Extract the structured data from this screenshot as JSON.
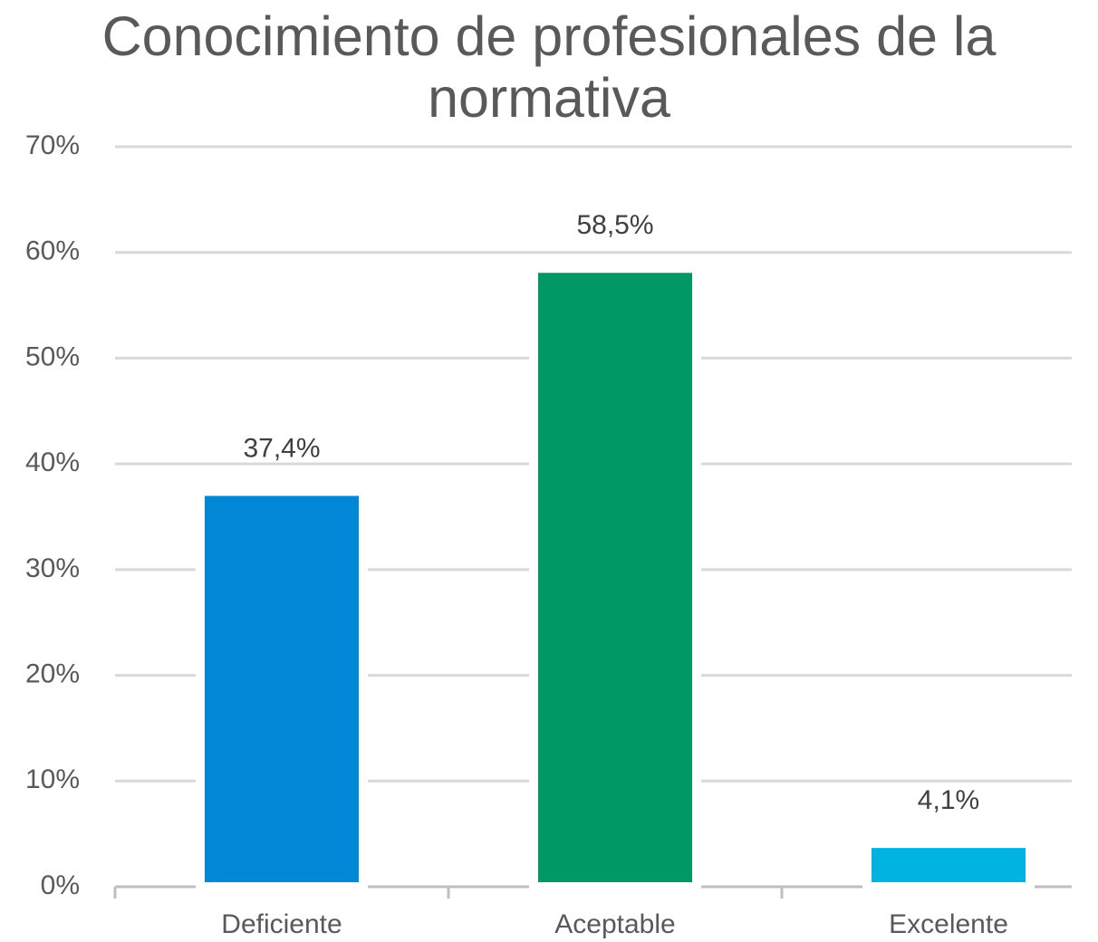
{
  "chart_data": {
    "type": "bar",
    "title": "Conocimiento de profesionales de la normativa",
    "categories": [
      "Deficiente",
      "Aceptable",
      "Excelente"
    ],
    "values": [
      37.4,
      58.5,
      4.1
    ],
    "value_labels": [
      "37,4%",
      "58,5%",
      "4,1%"
    ],
    "colors": [
      "#0088d6",
      "#009966",
      "#00b3e0"
    ],
    "ylim": [
      0,
      70
    ],
    "yticks": [
      {
        "value": 0,
        "label": "0%"
      },
      {
        "value": 10,
        "label": "10%"
      },
      {
        "value": 20,
        "label": "20%"
      },
      {
        "value": 30,
        "label": "30%"
      },
      {
        "value": 40,
        "label": "40%"
      },
      {
        "value": 50,
        "label": "50%"
      },
      {
        "value": 60,
        "label": "60%"
      },
      {
        "value": 70,
        "label": "70%"
      }
    ],
    "grid": true
  }
}
